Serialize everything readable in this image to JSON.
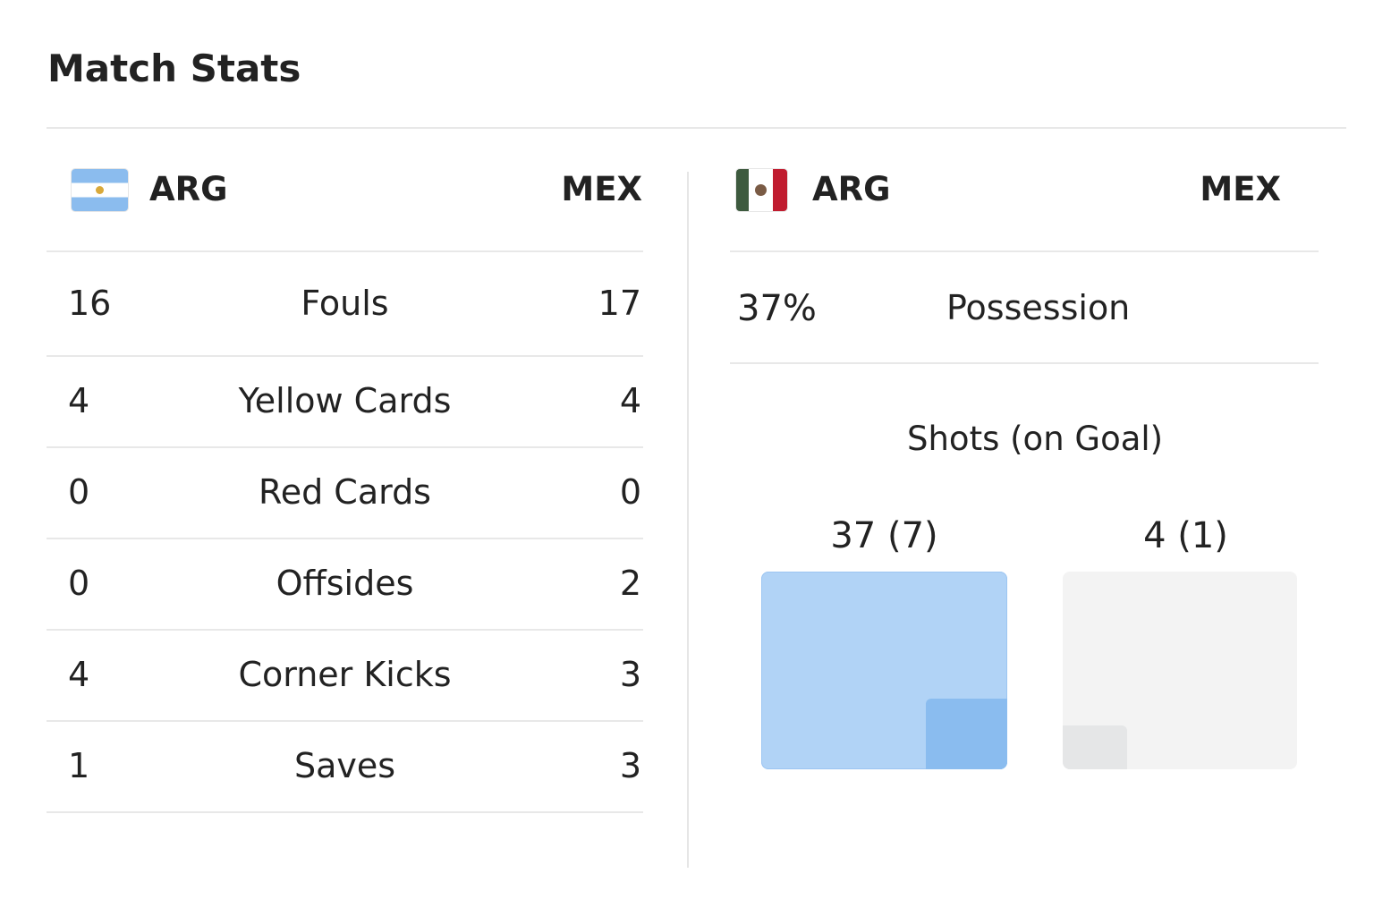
{
  "title": "Match Stats",
  "left_panel": {
    "home": "ARG",
    "away": "MEX",
    "home_flag": "argentina-flag",
    "rows": [
      {
        "label": "Fouls",
        "home": "16",
        "away": "17"
      },
      {
        "label": "Yellow Cards",
        "home": "4",
        "away": "4"
      },
      {
        "label": "Red Cards",
        "home": "0",
        "away": "0"
      },
      {
        "label": "Offsides",
        "home": "0",
        "away": "2"
      },
      {
        "label": "Corner Kicks",
        "home": "4",
        "away": "3"
      },
      {
        "label": "Saves",
        "home": "1",
        "away": "3"
      }
    ]
  },
  "right_panel": {
    "home": "ARG",
    "away": "MEX",
    "flag": "mexico-flag",
    "possession": {
      "label": "Possession",
      "home": "37%"
    },
    "shots": {
      "title": "Shots (on Goal)",
      "home": {
        "label": "37 (7)",
        "total": 37,
        "on_goal": 7,
        "color": "#b1d3f6",
        "on_goal_color": "#8abcef"
      },
      "away": {
        "label": "4 (1)",
        "total": 4,
        "on_goal": 1,
        "color": "#f3f3f3",
        "on_goal_color": "#e5e6e7"
      }
    }
  }
}
